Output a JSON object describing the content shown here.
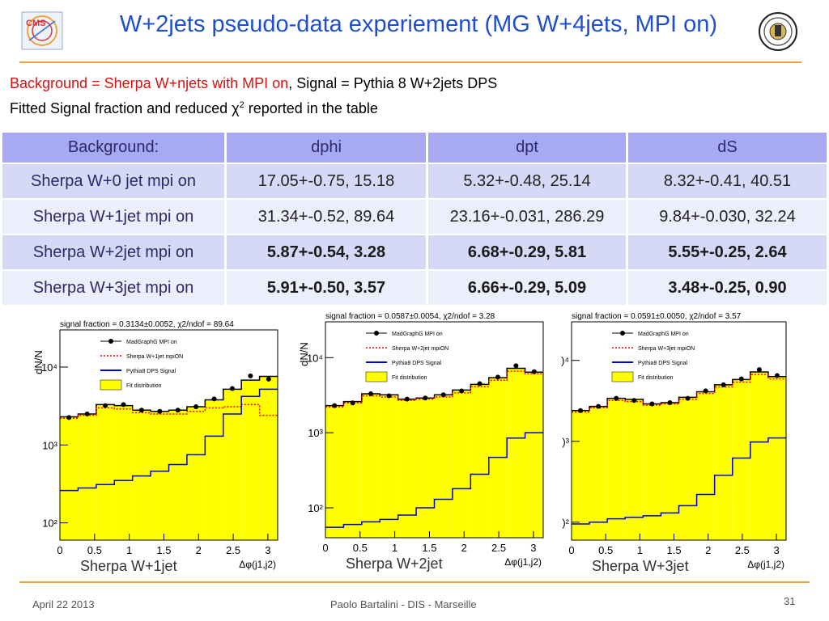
{
  "title": "W+2jets pseudo-data experiement (MG W+4jets, MPI on)",
  "logos": {
    "left_text": "CMS"
  },
  "subtitle": {
    "line1_red": "Background = Sherpa W+njets with MPI on",
    "line1_black": ", Signal = Pythia 8 W+2jets DPS",
    "line2_pre": "Fitted Signal fraction and reduced χ",
    "line2_sup": "2",
    "line2_post": " reported in the table"
  },
  "table": {
    "headers": [
      "Background:",
      "dphi",
      "dpt",
      "dS"
    ],
    "rows": [
      {
        "name": "Sherpa W+0 jet mpi on",
        "dphi": "17.05+-0.75, 15.18",
        "dpt": "5.32+-0.48, 25.14",
        "dS": "8.32+-0.41, 40.51"
      },
      {
        "name": "Sherpa W+1jet mpi on",
        "dphi": "31.34+-0.52, 89.64",
        "dpt": "23.16+-0.031, 286.29",
        "dS": "9.84+-0.030, 32.24"
      },
      {
        "name": "Sherpa W+2jet mpi on",
        "dphi": "5.87+-0.54, 3.28",
        "dpt": "6.68+-0.29, 5.81",
        "dS": "5.55+-0.25, 2.64"
      },
      {
        "name": "Sherpa W+3jet mpi on",
        "dphi": "5.91+-0.50, 3.57",
        "dpt": "6.66+-0.29, 5.09",
        "dS": "3.48+-0.25, 0.90"
      }
    ]
  },
  "chart_data": [
    {
      "type": "line",
      "title": "signal fraction = 0.3134±0.0052, χ2/ndof = 89.64",
      "ylabel": "dN/N",
      "xlabel": "Δφ(j1,j2)",
      "caption": "Sherpa W+1jet",
      "log_y": true,
      "ylim": [
        60,
        30000
      ],
      "xlim": [
        0,
        3.14159
      ],
      "x_ticks": [
        "0",
        "0.5",
        "1",
        "1.5",
        "2",
        "2.5",
        "3"
      ],
      "y_ticks": [
        {
          "v": 100,
          "l": "10²"
        },
        {
          "v": 1000,
          "l": "10³"
        },
        {
          "v": 10000,
          "l": "10⁴"
        }
      ],
      "legend": [
        "MadGraphG MPI on",
        "Sherpa W+1jet mpiON",
        "Pythia8 DPS Signal",
        "Fit distribution"
      ],
      "nbins": 12,
      "fit": [
        2300,
        2500,
        3300,
        3200,
        2800,
        2700,
        2800,
        3100,
        3800,
        5200,
        6800,
        7600
      ],
      "data": [
        2250,
        2500,
        3200,
        3300,
        2800,
        2700,
        2800,
        3100,
        3900,
        5300,
        7700,
        7000
      ],
      "background": [
        2200,
        2400,
        3000,
        2900,
        2600,
        2500,
        2500,
        2700,
        3000,
        3100,
        3300,
        2400
      ],
      "signal": [
        260,
        280,
        310,
        350,
        400,
        460,
        560,
        750,
        1300,
        2500,
        4200,
        5200
      ]
    },
    {
      "type": "line",
      "title": "signal fraction = 0.0587±0.0054, χ2/ndof = 3.28",
      "ylabel": "dN/N",
      "xlabel": "Δφ(j1,j2)",
      "caption": "Sherpa W+2jet",
      "log_y": true,
      "ylim": [
        40,
        30000
      ],
      "xlim": [
        0,
        3.14159
      ],
      "x_ticks": [
        "0",
        "0.5",
        "1",
        "1.5",
        "2",
        "2.5",
        "3"
      ],
      "y_ticks": [
        {
          "v": 100,
          "l": "10²"
        },
        {
          "v": 1000,
          "l": "10³"
        },
        {
          "v": 10000,
          "l": "10⁴"
        }
      ],
      "legend": [
        "MadGraphG MPI on",
        "Sherpa W+2jet mpiON",
        "Pythia8 DPS Signal",
        "Fit distribution"
      ],
      "nbins": 12,
      "fit": [
        2300,
        2600,
        3300,
        3200,
        2800,
        2900,
        3200,
        3700,
        4400,
        5400,
        7200,
        6400
      ],
      "data": [
        2300,
        2500,
        3300,
        3100,
        2800,
        2900,
        3200,
        3600,
        4500,
        5500,
        7800,
        6500
      ],
      "background": [
        2200,
        2500,
        3100,
        3000,
        2700,
        2800,
        3000,
        3400,
        4100,
        5000,
        6600,
        6100
      ],
      "signal": [
        55,
        60,
        65,
        70,
        80,
        100,
        130,
        180,
        280,
        470,
        850,
        1000
      ]
    },
    {
      "type": "line",
      "title": "signal fraction = 0.0591±0.0050, χ2/ndof = 3.57",
      "ylabel": "",
      "xlabel": "Δφ(j1,j2)",
      "caption": "Sherpa W+3jet",
      "log_y": true,
      "ylim": [
        60,
        30000
      ],
      "xlim": [
        0,
        3.14159
      ],
      "x_ticks": [
        "0",
        "0.5",
        "1",
        "1.5",
        "2",
        "2.5",
        "3"
      ],
      "y_ticks": [
        {
          "v": 100,
          "l": ")²"
        },
        {
          "v": 1000,
          "l": ")³"
        },
        {
          "v": 10000,
          "l": ")⁴"
        }
      ],
      "legend": [
        "MadGraphG MPI on",
        "Sherpa W+3jet mpiON",
        "Pythia8 DPS Signal",
        "Fit distribution"
      ],
      "nbins": 12,
      "fit": [
        2400,
        2700,
        3400,
        3300,
        2900,
        3000,
        3500,
        4100,
        5000,
        5800,
        7200,
        6300
      ],
      "data": [
        2400,
        2700,
        3400,
        3200,
        2900,
        3000,
        3400,
        4200,
        5000,
        5900,
        7700,
        6500
      ],
      "background": [
        2300,
        2600,
        3200,
        3100,
        2800,
        2900,
        3300,
        3900,
        4700,
        5400,
        6700,
        5900
      ],
      "signal": [
        95,
        100,
        110,
        115,
        120,
        130,
        160,
        220,
        380,
        620,
        980,
        1100
      ]
    }
  ],
  "footer": {
    "date": "April 22 2013",
    "center": "Paolo Bartalini - DIS - Marseille",
    "page": "31"
  },
  "colors": {
    "title": "#1f4fd0",
    "rule": "#f2a23a",
    "header_bg": "#a7a9f2",
    "row_a": "#d6d9f6",
    "row_b": "#eceefb",
    "fill": "#ffff00",
    "background_line": "#ff0000",
    "signal_line": "#0000dd"
  }
}
